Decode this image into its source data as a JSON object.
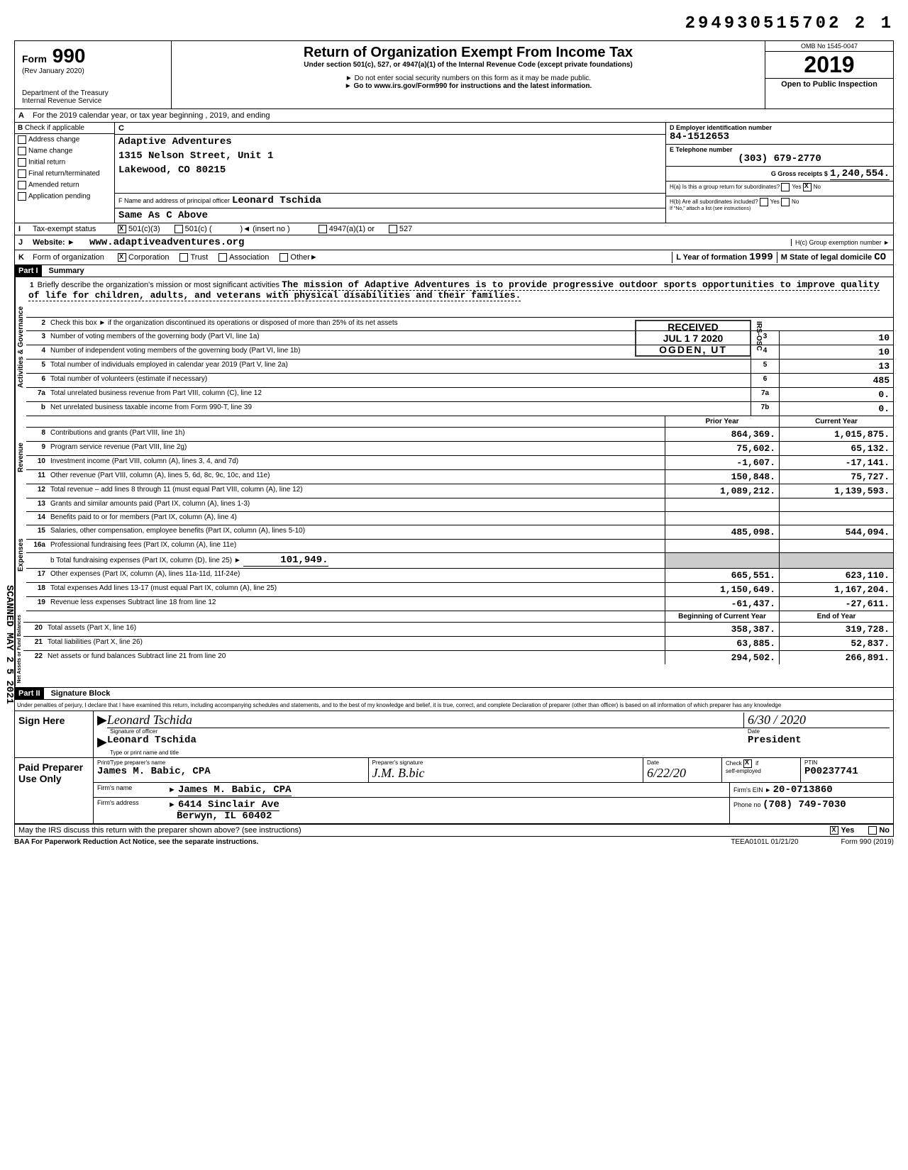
{
  "doc_number": "294930515702 2  1",
  "form": {
    "number": "990",
    "prefix": "Form",
    "rev": "(Rev January 2020)",
    "dept1": "Department of the Treasury",
    "dept2": "Internal Revenue Service",
    "title": "Return of Organization Exempt From Income Tax",
    "subtitle": "Under section 501(c), 527, or 4947(a)(1) of the Internal Revenue Code (except private foundations)",
    "inst1": "► Do not enter social security numbers on this form as it may be made public.",
    "inst2": "► Go to www.irs.gov/Form990 for instructions and the latest information.",
    "omb": "OMB No 1545-0047",
    "year": "2019",
    "open_public": "Open to Public Inspection"
  },
  "row_a": "For the 2019 calendar year, or tax year beginning                                              , 2019, and ending",
  "section_b": {
    "header": "Check if applicable",
    "c_header": "C",
    "checks": [
      "Address change",
      "Name change",
      "Initial return",
      "Final return/terminated",
      "Amended return",
      "Application pending"
    ],
    "org_name": "Adaptive Adventures",
    "org_addr1": "1315 Nelson Street, Unit 1",
    "org_addr2": "Lakewood, CO 80215",
    "officer_label": "F Name and address of principal officer",
    "officer_name": "Leonard Tschida",
    "officer_addr": "Same As C Above",
    "d_label": "D Employer identification number",
    "d_val": "84-1512653",
    "e_label": "E Telephone number",
    "e_val": "(303) 679-2770",
    "g_label": "G Gross receipts $",
    "g_val": "1,240,554.",
    "ha_label": "H(a) Is this a group return for subordinates?",
    "hb_label": "H(b) Are all subordinates included?",
    "hb_note": "If \"No,\" attach a list (see instructions)",
    "yes": "Yes",
    "no": "No"
  },
  "row_i": {
    "label": "Tax-exempt status",
    "val1": "501(c)(3)",
    "val2": "501(c) (",
    "val3": ")◄ (insert no )",
    "val4": "4947(a)(1) or",
    "val5": "527"
  },
  "row_j": {
    "label": "Website: ►",
    "val": "www.adaptiveadventures.org",
    "hc": "H(c) Group exemption number ►"
  },
  "row_k": {
    "label": "Form of organization",
    "opts": [
      "Corporation",
      "Trust",
      "Association",
      "Other►"
    ],
    "l_label": "L Year of formation",
    "l_val": "1999",
    "m_label": "M State of legal domicile",
    "m_val": "CO"
  },
  "part1": {
    "header": "Part I",
    "title": "Summary",
    "line1_label": "Briefly describe the organization's mission or most significant activities",
    "line1_text": "The mission of Adaptive Adventures is to provide progressive outdoor sports opportunities to improve quality of life for children, adults, and veterans with physical disabilities and their families.",
    "line2": "Check this box ►     if the organization discontinued its operations or disposed of more than 25% of its net assets",
    "sidebar_gov": "Activities & Governance",
    "sidebar_rev": "Revenue",
    "sidebar_exp": "Expenses",
    "sidebar_net": "Net Assets or Fund Balances",
    "stamp_received": "RECEIVED",
    "stamp_date": "JUL 1 7 2020",
    "stamp_irs": "IRS-OSC",
    "stamp_ogden": "OGDEN, UT",
    "col_prior": "Prior Year",
    "col_current": "Current Year",
    "col_begin": "Beginning of Current Year",
    "col_end": "End of Year",
    "gov_lines": [
      {
        "num": "3",
        "desc": "Number of voting members of the governing body (Part VI, line 1a)",
        "box": "3",
        "val": "10"
      },
      {
        "num": "4",
        "desc": "Number of independent voting members of the governing body (Part VI, line 1b)",
        "box": "4",
        "val": "10"
      },
      {
        "num": "5",
        "desc": "Total number of individuals employed in calendar year 2019 (Part V, line 2a)",
        "box": "5",
        "val": "13"
      },
      {
        "num": "6",
        "desc": "Total number of volunteers (estimate if necessary)",
        "box": "6",
        "val": "485"
      },
      {
        "num": "7a",
        "desc": "Total unrelated business revenue from Part VIII, column (C), line 12",
        "box": "7a",
        "val": "0."
      },
      {
        "num": "b",
        "desc": "Net unrelated business taxable income from Form 990-T, line 39",
        "box": "7b",
        "val": "0."
      }
    ],
    "rev_lines": [
      {
        "num": "8",
        "desc": "Contributions and grants (Part VIII, line 1h)",
        "prior": "864,369.",
        "current": "1,015,875."
      },
      {
        "num": "9",
        "desc": "Program service revenue (Part VIII, line 2g)",
        "prior": "75,602.",
        "current": "65,132."
      },
      {
        "num": "10",
        "desc": "Investment income (Part VIII, column (A), lines 3, 4, and 7d)",
        "prior": "-1,607.",
        "current": "-17,141."
      },
      {
        "num": "11",
        "desc": "Other revenue (Part VIII, column (A), lines 5, 6d, 8c, 9c, 10c, and 11e)",
        "prior": "150,848.",
        "current": "75,727."
      },
      {
        "num": "12",
        "desc": "Total revenue – add lines 8 through 11 (must equal Part VIII, column (A), line 12)",
        "prior": "1,089,212.",
        "current": "1,139,593."
      }
    ],
    "exp_lines": [
      {
        "num": "13",
        "desc": "Grants and similar amounts paid (Part IX, column (A), lines 1-3)",
        "prior": "",
        "current": ""
      },
      {
        "num": "14",
        "desc": "Benefits paid to or for members (Part IX, column (A), line 4)",
        "prior": "",
        "current": ""
      },
      {
        "num": "15",
        "desc": "Salaries, other compensation, employee benefits (Part IX, column (A), lines 5-10)",
        "prior": "485,098.",
        "current": "544,094."
      },
      {
        "num": "16a",
        "desc": "Professional fundraising fees (Part IX, column (A), line 11e)",
        "prior": "",
        "current": ""
      }
    ],
    "line16b": {
      "desc": "b Total fundraising expenses (Part IX, column (D), line 25) ►",
      "val": "101,949."
    },
    "exp_lines2": [
      {
        "num": "17",
        "desc": "Other expenses (Part IX, column (A), lines 11a-11d, 11f-24e)",
        "prior": "665,551.",
        "current": "623,110."
      },
      {
        "num": "18",
        "desc": "Total expenses Add lines 13-17 (must equal Part IX, column (A), line 25)",
        "prior": "1,150,649.",
        "current": "1,167,204."
      },
      {
        "num": "19",
        "desc": "Revenue less expenses Subtract line 18 from line 12",
        "prior": "-61,437.",
        "current": "-27,611."
      }
    ],
    "net_lines": [
      {
        "num": "20",
        "desc": "Total assets (Part X, line 16)",
        "prior": "358,387.",
        "current": "319,728."
      },
      {
        "num": "21",
        "desc": "Total liabilities (Part X, line 26)",
        "prior": "63,885.",
        "current": "52,837."
      },
      {
        "num": "22",
        "desc": "Net assets or fund balances Subtract line 21 from line 20",
        "prior": "294,502.",
        "current": "266,891."
      }
    ]
  },
  "part2": {
    "header": "Part II",
    "title": "Signature Block",
    "perjury": "Under penalties of perjury, I declare that I have examined this return, including accompanying schedules and statements, and to the best of my knowledge and belief, it is true, correct, and complete Declaration of preparer (other than officer) is based on all information of which preparer has any knowledge",
    "sign_here": "Sign Here",
    "sig_officer": "Signature of officer",
    "sig_date": "Date",
    "sig_date_val": "6/30 / 2020",
    "officer_name": "Leonard Tschida",
    "officer_title": "President",
    "type_print": "Type or print name and title",
    "paid_prep": "Paid Preparer Use Only",
    "prep_name_label": "Print/Type preparer's name",
    "prep_name": "James M. Babic, CPA",
    "prep_sig_label": "Preparer's signature",
    "prep_date": "6/22/20",
    "check_label": "Check",
    "self_emp": "self-employed",
    "ptin_label": "PTIN",
    "ptin": "P00237741",
    "firm_name_label": "Firm's name",
    "firm_name": "James M. Babic, CPA",
    "firm_addr_label": "Firm's address",
    "firm_addr1": "6414 Sinclair Ave",
    "firm_addr2": "Berwyn, IL 60402",
    "firm_ein_label": "Firm's EIN ►",
    "firm_ein": "20-0713860",
    "phone_label": "Phone no",
    "phone": "(708) 749-7030",
    "discuss": "May the IRS discuss this return with the preparer shown above? (see instructions)",
    "baa": "BAA For Paperwork Reduction Act Notice, see the separate instructions.",
    "teea": "TEEA0101L 01/21/20",
    "form_footer": "Form 990 (2019)"
  },
  "scanned": "SCANNED MAY 2 5 2021"
}
